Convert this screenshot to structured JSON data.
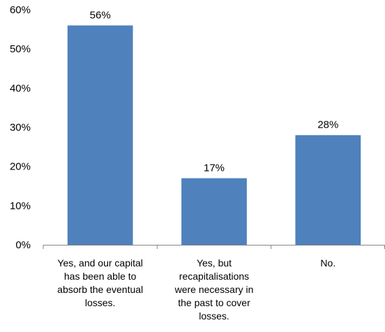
{
  "chart_data": {
    "type": "bar",
    "categories": [
      [
        "Yes, and our capital",
        "has been able to",
        "absorb the eventual",
        "losses."
      ],
      [
        "Yes, but",
        "recapitalisations",
        "were necessary in",
        "the past to cover",
        "losses."
      ],
      [
        "No."
      ]
    ],
    "values": [
      56,
      17,
      28
    ],
    "value_labels": [
      "56%",
      "17%",
      "28%"
    ],
    "y_ticks": [
      0,
      10,
      20,
      30,
      40,
      50,
      60
    ],
    "y_tick_labels": [
      "0%",
      "10%",
      "20%",
      "30%",
      "40%",
      "50%",
      "60%"
    ],
    "ylim": [
      0,
      60
    ],
    "bar_color": "#4F81BD",
    "grid": false,
    "legend": "none"
  }
}
